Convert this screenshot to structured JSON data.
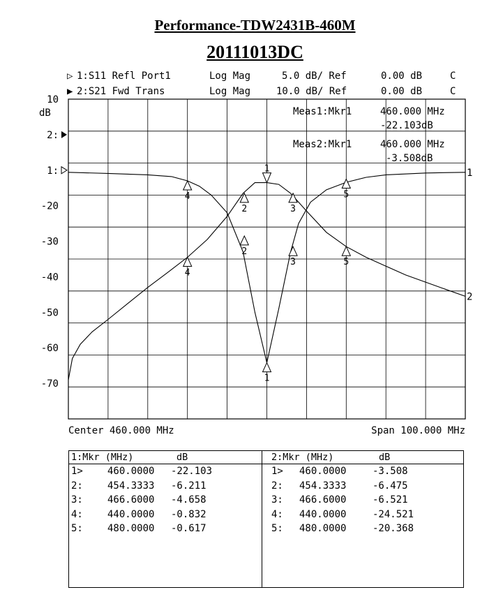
{
  "report": {
    "title": "Performance-TDW2431B-460M",
    "subtitle": "20111013DC"
  },
  "traces": [
    {
      "marker": "▷",
      "label": "1:S11 Refl Port1",
      "format": "Log Mag",
      "scale": "5.0 dB/ Ref",
      "ref": "0.00 dB",
      "flag": "C"
    },
    {
      "marker": "▶",
      "label": "2:S21 Fwd Trans",
      "format": "Log Mag",
      "scale": "10.0 dB/ Ref",
      "ref": "0.00 dB",
      "flag": "C"
    }
  ],
  "readouts": [
    {
      "label": "Meas1:Mkr1",
      "freq": "460.000 MHz",
      "value": "-22.103dB"
    },
    {
      "label": "Meas2:Mkr1",
      "freq": "460.000 MHz",
      "value": "-3.508dB"
    }
  ],
  "footer": {
    "center": "Center 460.000 MHz",
    "span": "Span 100.000 MHz"
  },
  "chart_data": {
    "type": "line",
    "ylabel": "dB",
    "x_range_mhz": [
      410,
      510
    ],
    "y_range_db": [
      -80,
      10
    ],
    "y_tick_labels": [
      "10",
      "2:",
      "1:",
      "-20",
      "-30",
      "-40",
      "-50",
      "-60",
      "-70"
    ],
    "y_tick_values": [
      10,
      0,
      -10,
      -20,
      -30,
      -40,
      -50,
      -60,
      -70
    ],
    "series": [
      {
        "name": "1",
        "points": [
          [
            410,
            -10.6
          ],
          [
            420,
            -10.9
          ],
          [
            430,
            -11.3
          ],
          [
            436,
            -11.8
          ],
          [
            440,
            -13.0
          ],
          [
            443,
            -14.5
          ],
          [
            446,
            -17.0
          ],
          [
            450,
            -22.0
          ],
          [
            454,
            -33.0
          ],
          [
            457,
            -50.0
          ],
          [
            460,
            -64.2
          ],
          [
            463,
            -49.0
          ],
          [
            466,
            -33.0
          ],
          [
            468,
            -25.0
          ],
          [
            471,
            -19.0
          ],
          [
            475,
            -15.5
          ],
          [
            480,
            -13.4
          ],
          [
            485,
            -12.0
          ],
          [
            490,
            -11.3
          ],
          [
            500,
            -10.8
          ],
          [
            510,
            -10.6
          ]
        ]
      },
      {
        "name": "2",
        "points": [
          [
            410,
            -69.0
          ],
          [
            411,
            -63.0
          ],
          [
            413,
            -59.0
          ],
          [
            416,
            -55.5
          ],
          [
            420,
            -52.0
          ],
          [
            425,
            -47.5
          ],
          [
            430,
            -43.0
          ],
          [
            435,
            -38.8
          ],
          [
            440,
            -34.5
          ],
          [
            445,
            -29.5
          ],
          [
            450,
            -23.0
          ],
          [
            454,
            -16.5
          ],
          [
            457,
            -13.5
          ],
          [
            460,
            -13.5
          ],
          [
            463,
            -14.0
          ],
          [
            466,
            -16.5
          ],
          [
            470,
            -21.5
          ],
          [
            475,
            -27.5
          ],
          [
            480,
            -31.5
          ],
          [
            485,
            -34.5
          ],
          [
            490,
            -37.0
          ],
          [
            495,
            -39.5
          ],
          [
            500,
            -41.5
          ],
          [
            505,
            -43.5
          ],
          [
            510,
            -45.5
          ]
        ]
      }
    ],
    "markers": [
      {
        "trace": 1,
        "id": "1",
        "x": 460.0,
        "y": -64.2,
        "dir": "up"
      },
      {
        "trace": 1,
        "id": "2",
        "x": 454.3333,
        "y": -28.5,
        "dir": "up"
      },
      {
        "trace": 1,
        "id": "3",
        "x": 466.6,
        "y": -31.5,
        "dir": "up"
      },
      {
        "trace": 1,
        "id": "4",
        "x": 440.0,
        "y": -13.0,
        "dir": "up"
      },
      {
        "trace": 1,
        "id": "5",
        "x": 480.0,
        "y": -12.5,
        "dir": "up"
      },
      {
        "trace": 2,
        "id": "1",
        "x": 460.0,
        "y": -13.5,
        "dir": "down"
      },
      {
        "trace": 2,
        "id": "2",
        "x": 454.3333,
        "y": -16.5,
        "dir": "up"
      },
      {
        "trace": 2,
        "id": "3",
        "x": 466.6,
        "y": -16.5,
        "dir": "up"
      },
      {
        "trace": 2,
        "id": "4",
        "x": 440.0,
        "y": -34.5,
        "dir": "up"
      },
      {
        "trace": 2,
        "id": "5",
        "x": 480.0,
        "y": -31.5,
        "dir": "up"
      }
    ],
    "grid": true
  },
  "tables": [
    {
      "header_label": "1:Mkr (MHz)",
      "header_unit": "dB",
      "rows": [
        {
          "id": "1>",
          "freq": "460.0000",
          "value": "-22.103"
        },
        {
          "id": "2:",
          "freq": "454.3333",
          "value": "-6.211"
        },
        {
          "id": "3:",
          "freq": "466.6000",
          "value": "-4.658"
        },
        {
          "id": "4:",
          "freq": "440.0000",
          "value": "-0.832"
        },
        {
          "id": "5:",
          "freq": "480.0000",
          "value": "-0.617"
        }
      ]
    },
    {
      "header_label": "2:Mkr (MHz)",
      "header_unit": "dB",
      "rows": [
        {
          "id": "1>",
          "freq": "460.0000",
          "value": "-3.508"
        },
        {
          "id": "2:",
          "freq": "454.3333",
          "value": "-6.475"
        },
        {
          "id": "3:",
          "freq": "466.6000",
          "value": "-6.521"
        },
        {
          "id": "4:",
          "freq": "440.0000",
          "value": "-24.521"
        },
        {
          "id": "5:",
          "freq": "480.0000",
          "value": "-20.368"
        }
      ]
    }
  ]
}
